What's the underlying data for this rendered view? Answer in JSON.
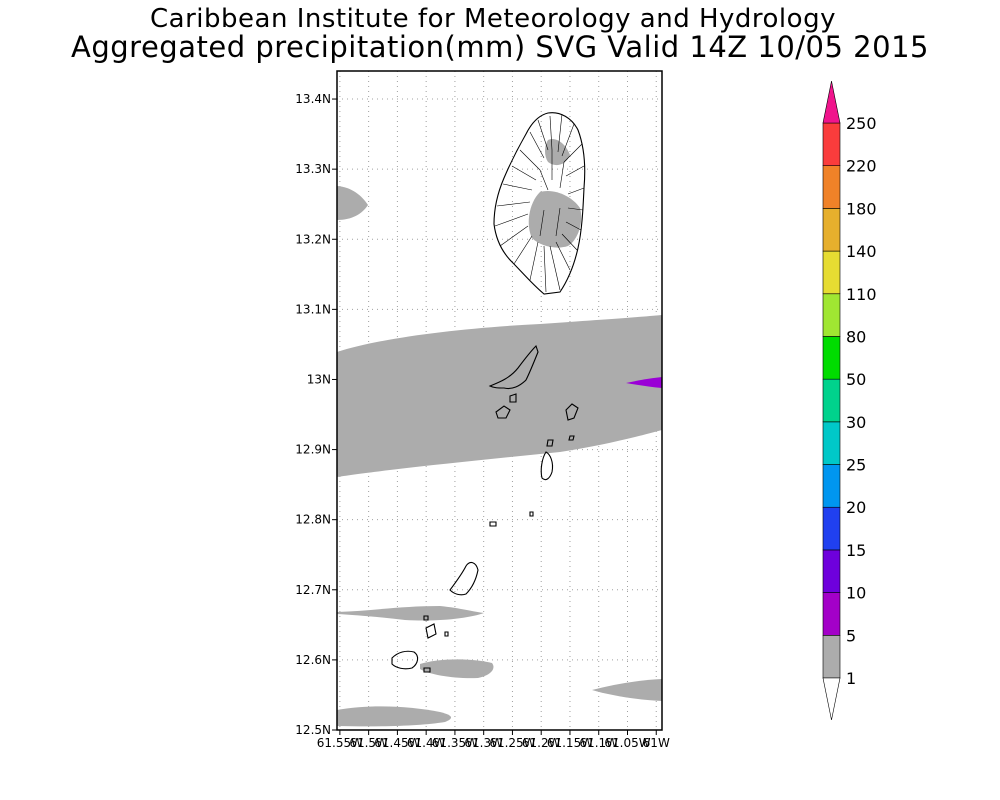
{
  "header": {
    "title_line_1": "Caribbean Institute for Meteorology and Hydrology",
    "title_line_2": "Aggregated precipitation(mm) SVG Valid 14Z 10/05 2015"
  },
  "map": {
    "lat_range": [
      12.5,
      13.44
    ],
    "lon_range": [
      -61.555,
      -60.99
    ],
    "lat_ticks": [
      {
        "value": 13.4,
        "label": "13.4N"
      },
      {
        "value": 13.3,
        "label": "13.3N"
      },
      {
        "value": 13.2,
        "label": "13.2N"
      },
      {
        "value": 13.1,
        "label": "13.1N"
      },
      {
        "value": 13.0,
        "label": "13N"
      },
      {
        "value": 12.9,
        "label": "12.9N"
      },
      {
        "value": 12.8,
        "label": "12.8N"
      },
      {
        "value": 12.7,
        "label": "12.7N"
      },
      {
        "value": 12.6,
        "label": "12.6N"
      },
      {
        "value": 12.5,
        "label": "12.5N"
      }
    ],
    "lon_ticks": [
      {
        "value": -61.55,
        "label": "61.55W"
      },
      {
        "value": -61.5,
        "label": "61.5W"
      },
      {
        "value": -61.45,
        "label": "61.45W"
      },
      {
        "value": -61.4,
        "label": "61.4W"
      },
      {
        "value": -61.35,
        "label": "61.35W"
      },
      {
        "value": -61.3,
        "label": "61.3W"
      },
      {
        "value": -61.25,
        "label": "61.25W"
      },
      {
        "value": -61.2,
        "label": "61.2W"
      },
      {
        "value": -61.15,
        "label": "61.15W"
      },
      {
        "value": -61.1,
        "label": "61.1W"
      },
      {
        "value": -61.05,
        "label": "61.05W"
      },
      {
        "value": -61.0,
        "label": "61W"
      }
    ],
    "colors": {
      "precip_1_5": "#acacac",
      "precip_5_10": "#9a00d6",
      "coastline": "#000000",
      "grid": "#a0a0a0"
    }
  },
  "colorbar": {
    "bins": [
      {
        "color": "#acacac"
      },
      {
        "color": "#a300c8"
      },
      {
        "color": "#6e00dc"
      },
      {
        "color": "#2040f0"
      },
      {
        "color": "#0096f0"
      },
      {
        "color": "#00c8c8"
      },
      {
        "color": "#00d28c"
      },
      {
        "color": "#00dc00"
      },
      {
        "color": "#a0e632"
      },
      {
        "color": "#e6dc32"
      },
      {
        "color": "#e6af2d"
      },
      {
        "color": "#f08228"
      },
      {
        "color": "#fa3c3c"
      }
    ],
    "top_arrow_color": "#f0148c",
    "bottom_arrow_color": "#ffffff",
    "labels": [
      "1",
      "5",
      "10",
      "15",
      "20",
      "25",
      "30",
      "50",
      "80",
      "110",
      "140",
      "180",
      "220",
      "250"
    ]
  }
}
